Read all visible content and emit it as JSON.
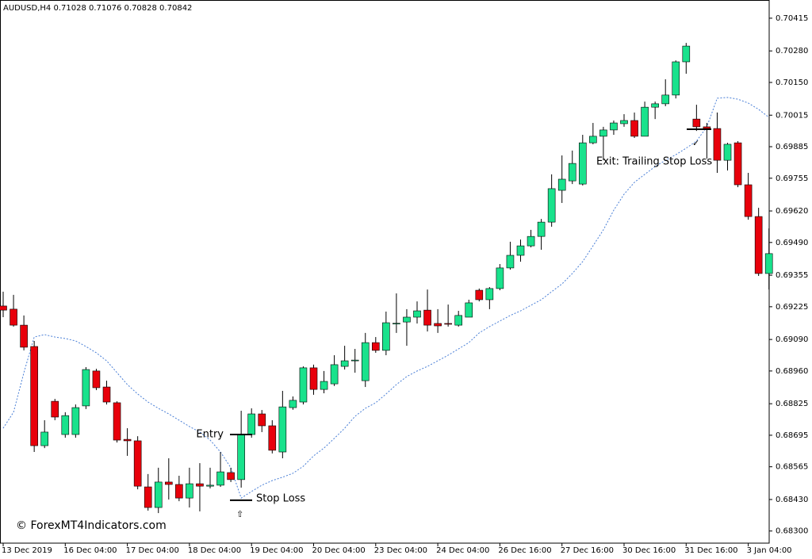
{
  "chart_data": {
    "type": "candlestick",
    "title": "AUDUSD,H4  0.71028 0.71076 0.70828 0.70842",
    "watermark": "© ForexMT4Indicators.com",
    "up_color": "#19e28c",
    "down_color": "#e8000b",
    "ylim": [
      0.6825,
      0.7049
    ],
    "yticks": [
      0.70415,
      {
        "value": 0.7028,
        "label": "0.70280"
      },
      {
        "value": 0.7015,
        "label": "0.70150"
      },
      0.70015,
      0.69885,
      0.69755,
      {
        "value": 0.6962,
        "label": "0.69620"
      },
      {
        "value": 0.6949,
        "label": "0.69490"
      },
      0.69355,
      0.69225,
      {
        "value": 0.6909,
        "label": "0.69090"
      },
      {
        "value": 0.6896,
        "label": "0.68960"
      },
      0.68825,
      0.68695,
      0.68565,
      {
        "value": 0.6843,
        "label": "0.68430"
      },
      {
        "value": 0.683,
        "label": "0.68300"
      }
    ],
    "categories": [
      "13 Dec 2019",
      null,
      null,
      null,
      null,
      null,
      "16 Dec 04:00",
      null,
      null,
      null,
      null,
      null,
      "17 Dec 04:00",
      null,
      null,
      null,
      null,
      null,
      "18 Dec 04:00",
      null,
      null,
      null,
      null,
      null,
      "19 Dec 04:00",
      null,
      null,
      null,
      null,
      null,
      "20 Dec 04:00",
      null,
      null,
      null,
      null,
      null,
      "23 Dec 04:00",
      null,
      null,
      null,
      null,
      null,
      "24 Dec 04:00",
      null,
      null,
      null,
      null,
      null,
      "26 Dec 16:00",
      null,
      null,
      null,
      null,
      null,
      "27 Dec 16:00",
      null,
      null,
      null,
      null,
      null,
      "30 Dec 16:00",
      null,
      null,
      null,
      null,
      null,
      "31 Dec 16:00",
      null,
      null,
      null,
      null,
      null,
      "3 Jan 04:00",
      null,
      null
    ],
    "open": [
      0.69228,
      0.69215,
      0.69149,
      0.69061,
      0.68652,
      0.68835,
      0.68698,
      0.68698,
      0.68816,
      0.6896,
      0.68894,
      0.68829,
      0.68678,
      0.68672,
      0.68482,
      0.68397,
      0.68502,
      0.68492,
      0.68436,
      0.68495,
      0.68485,
      0.68489,
      0.68541,
      0.68512,
      0.68698,
      0.68783,
      0.68734,
      0.68626,
      0.68809,
      0.68832,
      0.68973,
      0.68884,
      0.68907,
      0.68979,
      0.69002,
      0.6892,
      0.69077,
      0.69045,
      0.69156,
      0.69162,
      0.69182,
      0.69211,
      0.69156,
      0.69156,
      0.69149,
      0.69182,
      0.69293,
      0.69254,
      0.693,
      0.69385,
      0.69437,
      0.69476,
      0.69515,
      0.69574,
      0.69705,
      0.69744,
      0.69731,
      0.69901,
      0.69928,
      0.69954,
      0.6998,
      0.69993,
      0.69928,
      0.70048,
      0.70062,
      0.70098,
      0.70235,
      0.69999,
      0.69967,
      0.6996,
      0.69829,
      0.69901,
      0.69728,
      0.69597,
      0.69362
    ],
    "high": [
      0.69287,
      0.69274,
      0.69189,
      0.69084,
      0.68757,
      0.68845,
      0.6879,
      0.68822,
      0.68976,
      0.68969,
      0.6892,
      0.68835,
      0.68724,
      0.68691,
      0.68535,
      0.68561,
      0.686,
      0.68528,
      0.68561,
      0.6858,
      0.68561,
      0.68626,
      0.68561,
      0.68796,
      0.68806,
      0.68799,
      0.68757,
      0.68878,
      0.68855,
      0.68979,
      0.68986,
      0.6896,
      0.69025,
      0.69064,
      0.69051,
      0.69117,
      0.691,
      0.69205,
      0.6928,
      0.69215,
      0.69247,
      0.69296,
      0.69215,
      0.69234,
      0.69208,
      0.69254,
      0.693,
      0.69306,
      0.69401,
      0.69493,
      0.69502,
      0.69542,
      0.69587,
      0.69771,
      0.69849,
      0.69869,
      0.69934,
      0.69983,
      0.69967,
      0.69993,
      0.70019,
      0.70026,
      0.70071,
      0.70071,
      0.70163,
      0.70241,
      0.70313,
      0.70058,
      0.69983,
      0.70026,
      0.69901,
      0.69908,
      0.69777,
      0.69633,
      0.69548
    ],
    "low": [
      0.69182,
      0.69143,
      0.69045,
      0.68626,
      0.68642,
      0.68757,
      0.68685,
      0.68685,
      0.68803,
      0.68881,
      0.68822,
      0.68665,
      0.6861,
      0.68472,
      0.68384,
      0.68374,
      0.6843,
      0.68423,
      0.68397,
      0.68381,
      0.68476,
      0.68482,
      0.68502,
      0.68479,
      0.68685,
      0.68708,
      0.6862,
      0.686,
      0.688,
      0.68822,
      0.68862,
      0.68868,
      0.68898,
      0.68966,
      0.68953,
      0.68894,
      0.69035,
      0.69025,
      0.69117,
      0.69064,
      0.69156,
      0.69123,
      0.69117,
      0.69143,
      0.69143,
      0.69182,
      0.69247,
      0.69215,
      0.69293,
      0.69378,
      0.69411,
      0.6947,
      0.6946,
      0.69555,
      0.69653,
      0.69731,
      0.69725,
      0.69895,
      0.69829,
      0.69934,
      0.69967,
      0.69921,
      0.69928,
      0.69999,
      0.70052,
      0.70084,
      0.70186,
      0.6995,
      0.69836,
      0.69777,
      0.69787,
      0.69718,
      0.69584,
      0.69352,
      0.69296
    ],
    "close": [
      0.69211,
      0.69149,
      0.69058,
      0.68652,
      0.68708,
      0.6877,
      0.68776,
      0.68809,
      0.68966,
      0.68891,
      0.68832,
      0.68675,
      0.68672,
      0.68485,
      0.68397,
      0.68502,
      0.68492,
      0.68436,
      0.68495,
      0.68485,
      0.68489,
      0.68544,
      0.68512,
      0.68698,
      0.68783,
      0.68734,
      0.68633,
      0.68812,
      0.68839,
      0.68973,
      0.68884,
      0.68917,
      0.68986,
      0.69002,
      0.69005,
      0.69077,
      0.69045,
      0.69159,
      0.69157,
      0.69182,
      0.69208,
      0.69149,
      0.69146,
      0.69153,
      0.69189,
      0.69241,
      0.69254,
      0.693,
      0.69385,
      0.69437,
      0.69476,
      0.69515,
      0.69574,
      0.69712,
      0.69751,
      0.69816,
      0.69901,
      0.69928,
      0.69954,
      0.69983,
      0.69993,
      0.69928,
      0.70048,
      0.70062,
      0.70098,
      0.70235,
      0.703,
      0.69967,
      0.6996,
      0.69829,
      0.69895,
      0.69728,
      0.69597,
      0.69362,
      0.69444
    ],
    "moving_average": {
      "color": "#4a7fd6",
      "values": [
        0.68724,
        0.6879,
        0.68953,
        0.691,
        0.6911,
        0.691,
        0.69094,
        0.69084,
        0.69061,
        0.69035,
        0.69002,
        0.68953,
        0.68904,
        0.68865,
        0.68832,
        0.68806,
        0.68783,
        0.68757,
        0.68731,
        0.68708,
        0.68675,
        0.68626,
        0.68561,
        0.68436,
        0.68463,
        0.68489,
        0.68508,
        0.68522,
        0.68538,
        0.68567,
        0.6861,
        0.68642,
        0.68682,
        0.68724,
        0.68773,
        0.68806,
        0.68829,
        0.68865,
        0.68904,
        0.68937,
        0.6896,
        0.68979,
        0.69002,
        0.69025,
        0.69051,
        0.69077,
        0.69117,
        0.69143,
        0.69166,
        0.69189,
        0.69208,
        0.69231,
        0.69254,
        0.69287,
        0.69319,
        0.69362,
        0.69411,
        0.69476,
        0.69542,
        0.69623,
        0.69689,
        0.69738,
        0.69771,
        0.69803,
        0.69829,
        0.69852,
        0.69879,
        0.69908,
        0.69967,
        0.70085,
        0.70088,
        0.70081,
        0.70065,
        0.70039,
        0.70006
      ]
    },
    "annotations": [
      {
        "text": "Entry",
        "value": 0.68698
      },
      {
        "text": "Stop Loss",
        "value": 0.68427
      },
      {
        "text": "Exit: Trailing Stop Loss",
        "value": 0.69957
      }
    ]
  }
}
